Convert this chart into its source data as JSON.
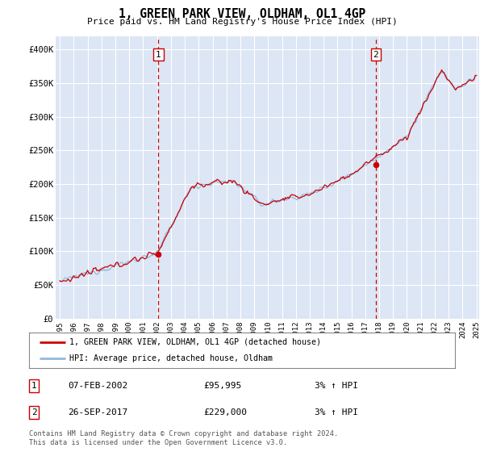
{
  "title": "1, GREEN PARK VIEW, OLDHAM, OL1 4GP",
  "subtitle": "Price paid vs. HM Land Registry's House Price Index (HPI)",
  "ylim": [
    0,
    420000
  ],
  "yticks": [
    0,
    50000,
    100000,
    150000,
    200000,
    250000,
    300000,
    350000,
    400000
  ],
  "ytick_labels": [
    "£0",
    "£50K",
    "£100K",
    "£150K",
    "£200K",
    "£250K",
    "£300K",
    "£350K",
    "£400K"
  ],
  "plot_bg_color": "#dce6f5",
  "grid_color": "#ffffff",
  "sale1_year": 2002.1,
  "sale1_price": 95995,
  "sale2_year": 2017.75,
  "sale2_price": 229000,
  "legend_line1": "1, GREEN PARK VIEW, OLDHAM, OL1 4GP (detached house)",
  "legend_line2": "HPI: Average price, detached house, Oldham",
  "table_rows": [
    {
      "num": "1",
      "date": "07-FEB-2002",
      "price": "£95,995",
      "hpi": "3% ↑ HPI"
    },
    {
      "num": "2",
      "date": "26-SEP-2017",
      "price": "£229,000",
      "hpi": "3% ↑ HPI"
    }
  ],
  "footer": "Contains HM Land Registry data © Crown copyright and database right 2024.\nThis data is licensed under the Open Government Licence v3.0.",
  "hpi_color": "#90b8e0",
  "price_color": "#cc0000",
  "dashed_color": "#cc0000",
  "x_start_year": 1995,
  "x_end_year": 2025
}
